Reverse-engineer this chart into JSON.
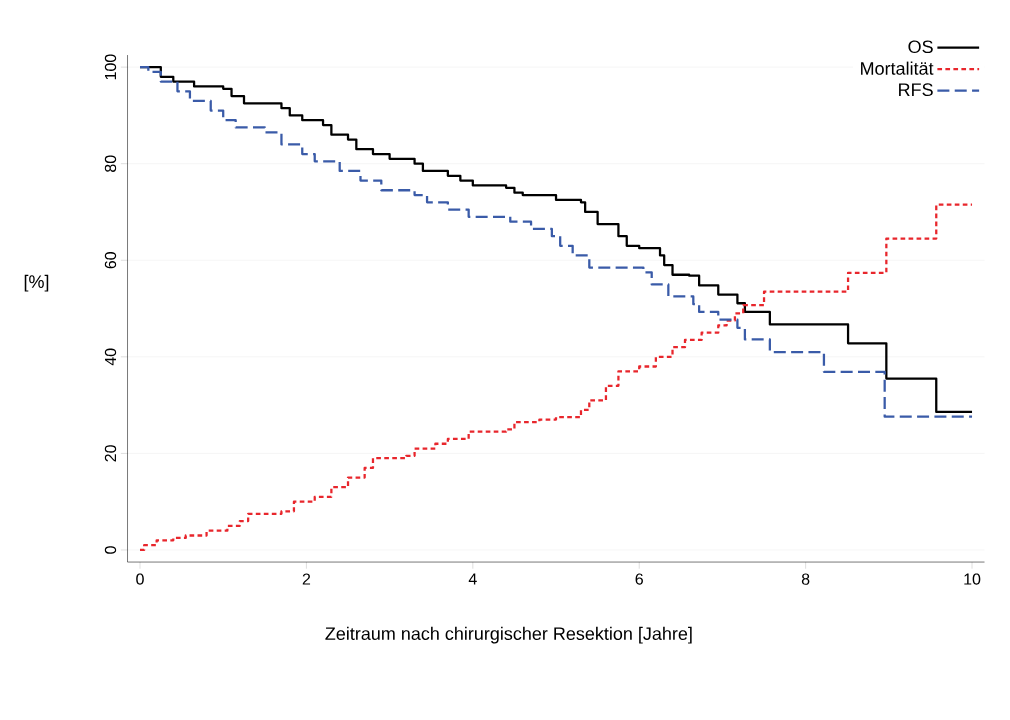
{
  "chart_data": {
    "type": "step",
    "xlabel": "Zeitraum nach chirurgischer Resektion [Jahre]",
    "ylabel": "[%]",
    "xlim": [
      -0.15,
      10.15
    ],
    "xticks": [
      0,
      2,
      4,
      6,
      8,
      10
    ],
    "ylim": [
      0,
      100
    ],
    "yticks": [
      0,
      20,
      40,
      60,
      80,
      100
    ],
    "grid": "y",
    "legend": "top right",
    "series": [
      {
        "name": "OS",
        "color": "#000000",
        "line_style": "solid",
        "x": [
          0,
          0.25,
          0.4,
          0.65,
          1.0,
          1.1,
          1.25,
          1.7,
          1.8,
          1.95,
          2.2,
          2.3,
          2.5,
          2.6,
          2.8,
          3.0,
          3.3,
          3.4,
          3.7,
          3.85,
          4.0,
          4.4,
          4.5,
          4.6,
          5.0,
          5.3,
          5.35,
          5.5,
          5.75,
          5.85,
          6.0,
          6.25,
          6.3,
          6.4,
          6.6,
          6.72,
          6.95,
          7.18,
          7.27,
          7.57,
          8.51,
          8.97,
          9.57,
          10
        ],
        "values": [
          100,
          98,
          97,
          96,
          95.5,
          94,
          92.5,
          91.5,
          90,
          89,
          88,
          86,
          85,
          83,
          82,
          81,
          80,
          78.5,
          77.5,
          76.5,
          75.5,
          75,
          74,
          73.5,
          72.5,
          72,
          70,
          67.5,
          65,
          63,
          62.5,
          61,
          59,
          57,
          56.8,
          54.8,
          52.9,
          51.1,
          49.3,
          46.7,
          42.8,
          35.5,
          28.6,
          28.6
        ]
      },
      {
        "name": "Mortalität",
        "color": "#e8262c",
        "line_style": "dotted",
        "x": [
          0,
          0.05,
          0.2,
          0.4,
          0.55,
          0.8,
          1.05,
          1.2,
          1.3,
          1.7,
          1.85,
          2.1,
          2.3,
          2.5,
          2.7,
          2.8,
          3.2,
          3.3,
          3.55,
          3.7,
          3.95,
          4.4,
          4.5,
          4.8,
          5.0,
          5.3,
          5.4,
          5.6,
          5.75,
          6.0,
          6.2,
          6.4,
          6.55,
          6.75,
          6.95,
          7.05,
          7.15,
          7.25,
          7.5,
          8.51,
          8.97,
          9.57,
          10
        ],
        "values": [
          0,
          1,
          2,
          2.5,
          3,
          4,
          5,
          6,
          7.5,
          8,
          10,
          11,
          13,
          15,
          17,
          19,
          19.5,
          21,
          22,
          23,
          24.5,
          25,
          26.5,
          27,
          27.5,
          29,
          31,
          34,
          37,
          38,
          40,
          42,
          43.5,
          45,
          46.5,
          47.5,
          49,
          50.7,
          53.5,
          57.4,
          64.5,
          71.5,
          71.5
        ]
      },
      {
        "name": "RFS",
        "color": "#3a5ba8",
        "line_style": "dashed",
        "x": [
          0,
          0.1,
          0.25,
          0.45,
          0.6,
          0.85,
          1.0,
          1.15,
          1.5,
          1.7,
          1.95,
          2.1,
          2.4,
          2.65,
          2.9,
          3.3,
          3.45,
          3.7,
          3.95,
          4.45,
          4.7,
          4.95,
          5.05,
          5.2,
          5.4,
          6.05,
          6.15,
          6.35,
          6.65,
          6.72,
          6.95,
          7.18,
          7.27,
          7.57,
          8.22,
          8.95,
          10
        ],
        "values": [
          100,
          99,
          97,
          95,
          93,
          91,
          89,
          87.5,
          86.5,
          84,
          82,
          80.5,
          78.5,
          76.5,
          74.5,
          73.5,
          72,
          70.5,
          69,
          68,
          66.5,
          65,
          63,
          61,
          58.5,
          57.5,
          55,
          52.5,
          50.9,
          49.3,
          47.7,
          46.0,
          43.6,
          41.0,
          36.9,
          27.6,
          27.6
        ]
      }
    ]
  }
}
